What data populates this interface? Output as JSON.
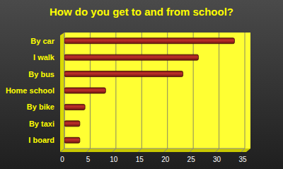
{
  "chart_data": {
    "type": "bar",
    "title": "How do you get to and from school?",
    "categories": [
      "By car",
      "I walk",
      "By bus",
      "Home school",
      "By bike",
      "By taxi",
      "I board"
    ],
    "values": [
      33,
      26,
      23,
      8,
      4,
      3,
      3
    ],
    "color": "#c0302a",
    "orientation": "horizontal",
    "xlim": [
      0,
      35
    ],
    "xticks": [
      0,
      5,
      10,
      15,
      20,
      25,
      30,
      35
    ],
    "grid": true
  }
}
